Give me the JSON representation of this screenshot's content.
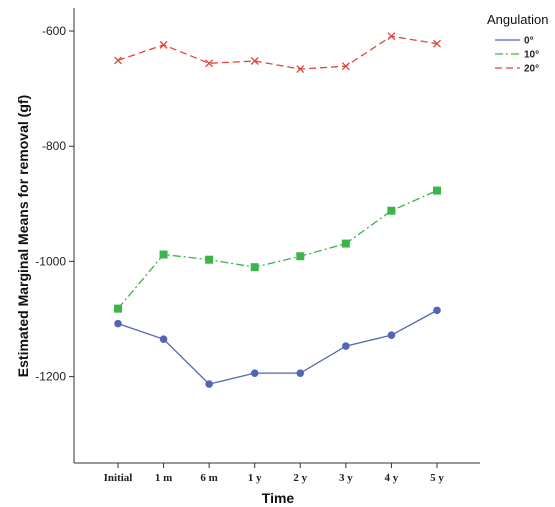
{
  "chart_data": {
    "type": "line",
    "xlabel": "Time",
    "ylabel": "Estimated Marginal Means for removal (gf)",
    "categories": [
      "Initial",
      "1 m",
      "6 m",
      "1 y",
      "2 y",
      "3 y",
      "4 y",
      "5 y"
    ],
    "ylim": [
      -1350,
      -560
    ],
    "yticks": [
      -600,
      -800,
      -1000,
      -1200
    ],
    "grid": false,
    "legend": {
      "title": "Angulation",
      "placement": "top-right"
    },
    "series": [
      {
        "name": "0°",
        "color": "#5266b3",
        "marker": "circle",
        "dash": "solid",
        "values": [
          -1108,
          -1135,
          -1213,
          -1194,
          -1194,
          -1147,
          -1128,
          -1085
        ]
      },
      {
        "name": "10°",
        "color": "#3cb449",
        "marker": "square",
        "dash": "dashdot",
        "values": [
          -1082,
          -988,
          -997,
          -1010,
          -991,
          -969,
          -912,
          -877
        ]
      },
      {
        "name": "20°",
        "color": "#e0443a",
        "marker": "x",
        "dash": "dashed",
        "values": [
          -651,
          -624,
          -656,
          -652,
          -666,
          -661,
          -609,
          -622
        ]
      }
    ]
  }
}
